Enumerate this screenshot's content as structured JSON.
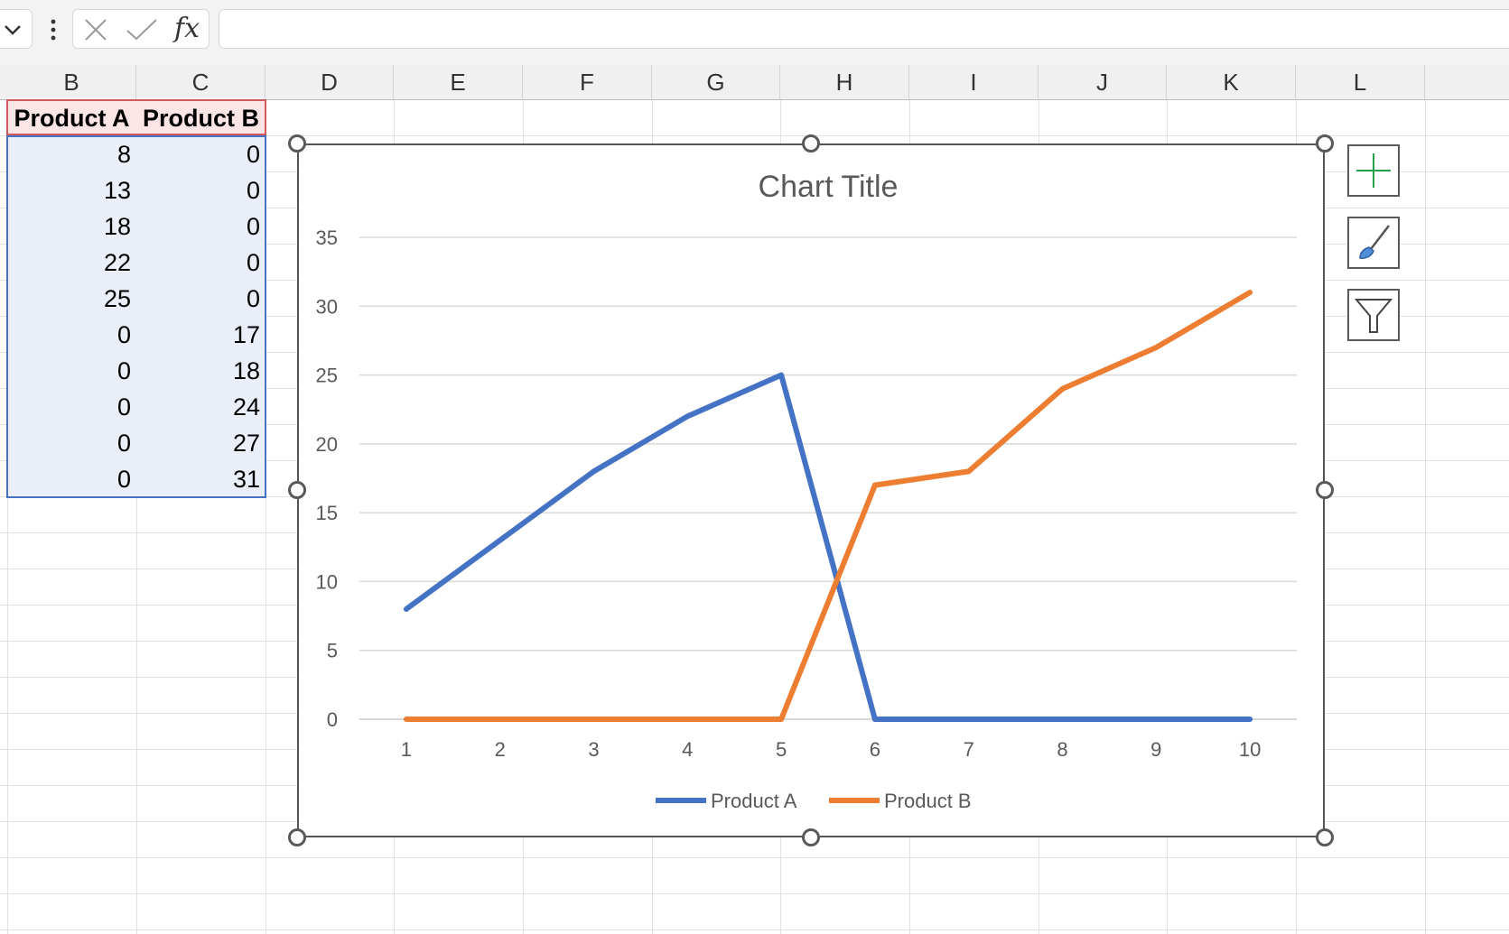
{
  "formula_bar": {
    "fx_label": "fx",
    "value": ""
  },
  "columns": [
    "B",
    "C",
    "D",
    "E",
    "F",
    "G",
    "H",
    "I",
    "J",
    "K",
    "L"
  ],
  "table": {
    "headers": [
      "Product A",
      "Product B"
    ],
    "rows": [
      [
        "8",
        "0"
      ],
      [
        "13",
        "0"
      ],
      [
        "18",
        "0"
      ],
      [
        "22",
        "0"
      ],
      [
        "25",
        "0"
      ],
      [
        "0",
        "17"
      ],
      [
        "0",
        "18"
      ],
      [
        "0",
        "24"
      ],
      [
        "0",
        "27"
      ],
      [
        "0",
        "31"
      ]
    ]
  },
  "chart_data": {
    "type": "line",
    "title": "Chart Title",
    "x": [
      1,
      2,
      3,
      4,
      5,
      6,
      7,
      8,
      9,
      10
    ],
    "x_tick_labels": [
      "1",
      "2",
      "3",
      "4",
      "5",
      "6",
      "7",
      "8",
      "9",
      "10"
    ],
    "y_tick_labels": [
      "0",
      "5",
      "10",
      "15",
      "20",
      "25",
      "30",
      "35"
    ],
    "ylim": [
      0,
      35
    ],
    "grid": true,
    "legend_position": "bottom",
    "series": [
      {
        "name": "Product A",
        "color": "#4472c4",
        "values": [
          8,
          13,
          18,
          22,
          25,
          0,
          0,
          0,
          0,
          0
        ]
      },
      {
        "name": "Product B",
        "color": "#ed7d31",
        "values": [
          0,
          0,
          0,
          0,
          0,
          17,
          18,
          24,
          27,
          31
        ]
      }
    ]
  },
  "side_buttons": [
    "plus-icon",
    "brush-icon",
    "filter-icon"
  ]
}
